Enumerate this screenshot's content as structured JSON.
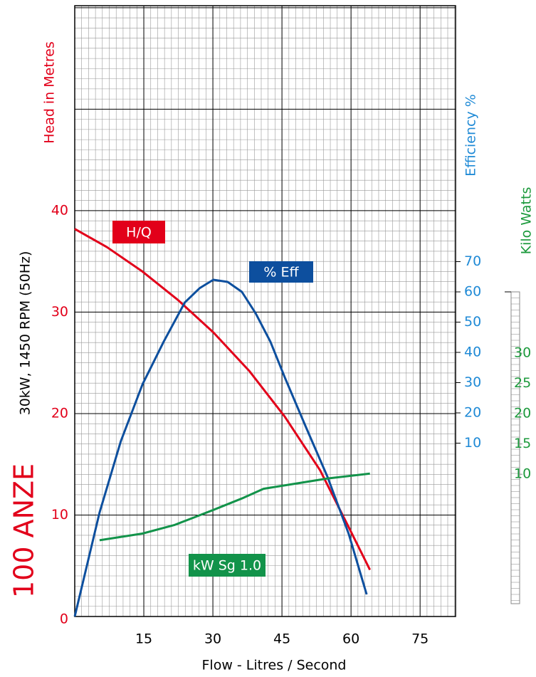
{
  "chart_data": {
    "type": "line",
    "model": "100 ANZE",
    "rating": "30kW, 1450 RPM (50Hz)",
    "xlabel": "Flow - Litres / Second",
    "ylabel": "Head in Metres",
    "y2label": "Efficiency %",
    "y3label": "Kilo Watts",
    "xlim": [
      0,
      82.7
    ],
    "xticks": [
      15,
      30,
      45,
      60,
      75
    ],
    "ylim": [
      0,
      60.2
    ],
    "yticks": [
      0,
      10,
      20,
      30,
      40
    ],
    "y2lim": [
      -47.3,
      154.6
    ],
    "y2ticks": [
      10,
      20,
      30,
      40,
      50,
      60,
      70
    ],
    "y3lim": [
      -13.5,
      87.4
    ],
    "y3ticks": [
      10,
      15,
      20,
      25,
      30
    ],
    "grid": true,
    "series": [
      {
        "name": "H/Q",
        "color": "#e2001a",
        "axis": "y",
        "x": [
          0,
          7,
          14.7,
          22.4,
          30.1,
          37.9,
          45.6,
          53.3,
          59.5,
          64.1
        ],
        "values": [
          38.2,
          36.4,
          34,
          31.2,
          28,
          24.2,
          19.7,
          14.4,
          8.8,
          4.6
        ]
      },
      {
        "name": "% Eff",
        "color": "#0d4f9e",
        "axis": "y2",
        "x": [
          0,
          5.4,
          10,
          14.7,
          19.3,
          23.9,
          27.1,
          30.1,
          33.2,
          36.3,
          39.3,
          42.5,
          45.6,
          50.2,
          54.9,
          59.5,
          63.4
        ],
        "values": [
          -47.3,
          -12.9,
          10.6,
          29.4,
          43.5,
          56.5,
          61.2,
          64,
          63.3,
          60,
          52.9,
          43.5,
          31.8,
          15.3,
          -1.2,
          -20,
          -40
        ]
      },
      {
        "name": "kW Sg 1.0",
        "color": "#12934a",
        "axis": "y3",
        "x": [
          5.4,
          14.7,
          21.6,
          24.7,
          30.1,
          36.3,
          41,
          45.9,
          54.9,
          64.1
        ],
        "values": [
          -0.9,
          0.2,
          1.6,
          2.5,
          4.1,
          6,
          7.6,
          8.2,
          9.3,
          10.1
        ]
      }
    ]
  }
}
